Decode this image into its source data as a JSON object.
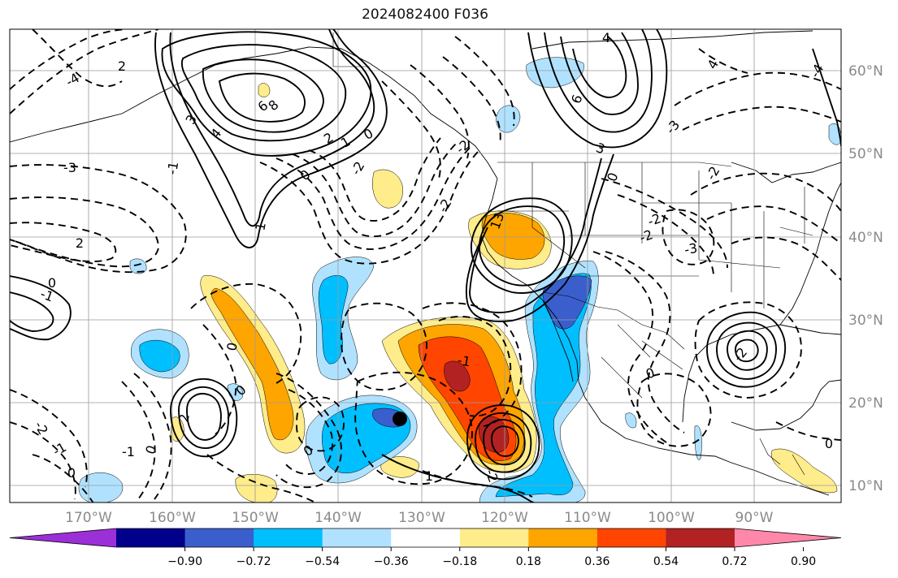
{
  "title": "2024082400 F036",
  "map": {
    "lon_labels": [
      "170°W",
      "160°W",
      "150°W",
      "140°W",
      "130°W",
      "120°W",
      "110°W",
      "100°W",
      "90°W"
    ],
    "lat_labels": [
      "60°N",
      "50°N",
      "40°N",
      "30°N",
      "20°N",
      "10°N"
    ],
    "label_color": "#8a8a8a"
  },
  "colorbar": {
    "colors": [
      "#9b30d9",
      "#00008b",
      "#3a5fcd",
      "#00bfff",
      "#b0e2ff",
      "#ffffff",
      "#ffec8b",
      "#ffa500",
      "#ff4500",
      "#b22222",
      "#ff88aa"
    ],
    "tick_labels": [
      "−0.90",
      "−0.72",
      "−0.54",
      "−0.36",
      "−0.18",
      "0.18",
      "0.36",
      "0.54",
      "0.72",
      "0.90"
    ]
  },
  "contour_labels": [
    {
      "text": "4"
    },
    {
      "text": "2"
    },
    {
      "text": "3"
    },
    {
      "text": "4"
    },
    {
      "text": "6"
    },
    {
      "text": "8"
    },
    {
      "text": "2"
    },
    {
      "text": "1"
    },
    {
      "text": "0"
    },
    {
      "text": "-3"
    },
    {
      "text": "-1"
    },
    {
      "text": "-2"
    },
    {
      "text": "0"
    },
    {
      "text": "1"
    },
    {
      "text": "-4"
    },
    {
      "text": "-2"
    },
    {
      "text": "6"
    },
    {
      "text": "4"
    },
    {
      "text": "3"
    },
    {
      "text": "-3"
    },
    {
      "text": "0"
    },
    {
      "text": "-2"
    },
    {
      "text": "-4"
    },
    {
      "text": "-2"
    },
    {
      "text": "13"
    },
    {
      "text": "-2"
    },
    {
      "text": "-2"
    },
    {
      "text": "-3"
    },
    {
      "text": "-1"
    },
    {
      "text": "0"
    },
    {
      "text": "2"
    },
    {
      "text": "0"
    },
    {
      "text": "-2"
    },
    {
      "text": "2"
    },
    {
      "text": "0"
    },
    {
      "text": "-1"
    },
    {
      "text": "-2"
    },
    {
      "text": "-1"
    },
    {
      "text": "0"
    },
    {
      "text": "0"
    },
    {
      "text": "-1"
    },
    {
      "text": "-2"
    },
    {
      "text": "0"
    },
    {
      "text": "1"
    },
    {
      "text": "0"
    },
    {
      "text": "0"
    }
  ]
}
